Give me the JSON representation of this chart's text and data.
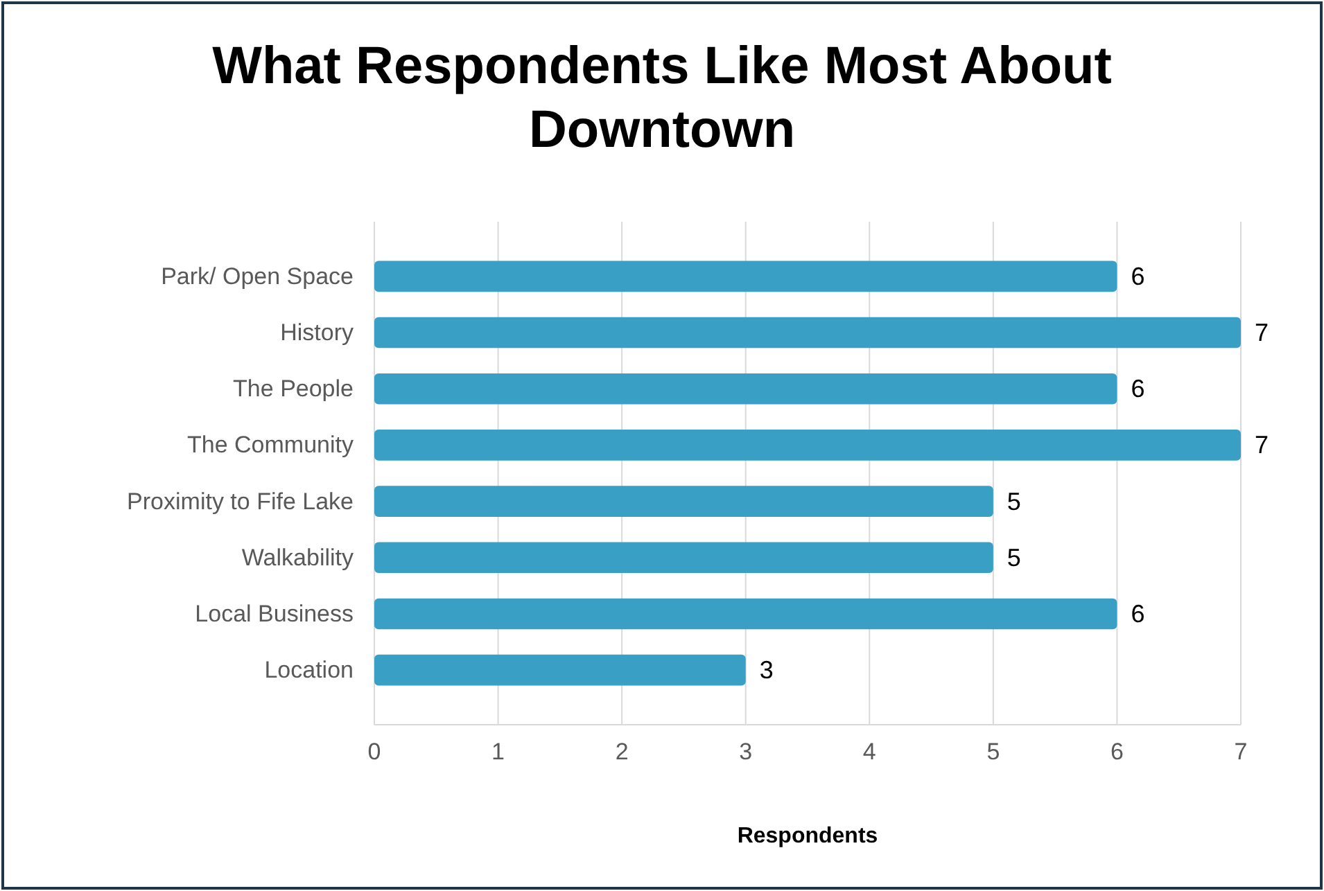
{
  "chart_data": {
    "type": "bar",
    "orientation": "horizontal",
    "title": "What Respondents Like Most About Downtown",
    "xlabel": "Respondents",
    "categories": [
      "Park/ Open Space",
      "History",
      "The People",
      "The Community",
      "Proximity to Fife Lake",
      "Walkability",
      "Local Business",
      "Location"
    ],
    "values": [
      6,
      7,
      6,
      7,
      5,
      5,
      6,
      3
    ],
    "color": "#3a9fc4",
    "xlim": [
      0,
      7
    ],
    "xticks": [
      0,
      1,
      2,
      3,
      4,
      5,
      6,
      7
    ],
    "grid": "x",
    "data_labels": true
  }
}
